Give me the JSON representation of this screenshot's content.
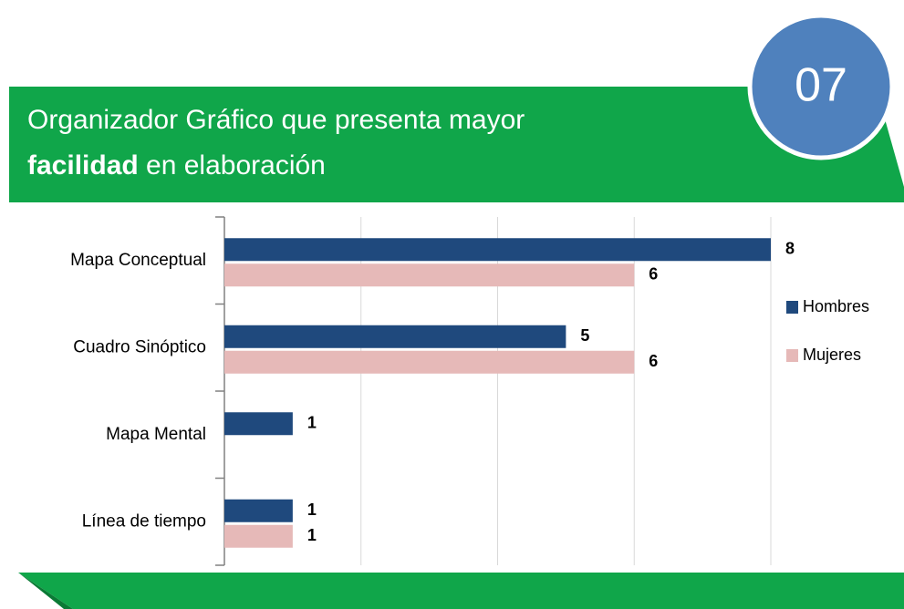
{
  "slide": {
    "number": "07",
    "title_line1": "Organizador Gráfico  que presenta mayor",
    "title_bold": "facilidad",
    "title_rest": "en elaboración"
  },
  "chart_data": {
    "type": "hbar",
    "categories": [
      "Mapa Conceptual",
      "Cuadro Sinóptico",
      "Mapa Mental",
      "Línea de tiempo"
    ],
    "series": [
      {
        "name": "Hombres",
        "color": "#1f497d",
        "values": [
          8,
          5,
          1,
          1
        ]
      },
      {
        "name": "Mujeres",
        "color": "#e6b9b8",
        "values": [
          6,
          6,
          null,
          1
        ]
      }
    ],
    "xlim": [
      0,
      8
    ],
    "xticks": [
      0,
      2,
      4,
      6,
      8
    ],
    "grid": true,
    "legend": "right"
  }
}
